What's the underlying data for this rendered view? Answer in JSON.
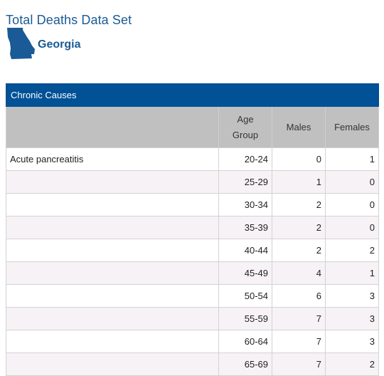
{
  "header": {
    "title": "Total Deaths Data Set"
  },
  "state": {
    "name": "Georgia",
    "icon": "georgia-state-icon",
    "color": "#1a5a96"
  },
  "table": {
    "caption": "Chronic Causes",
    "columns": {
      "cause": "",
      "age_group": "Age Group",
      "males": "Males",
      "females": "Females"
    },
    "rows": [
      {
        "cause": "Acute pancreatitis",
        "age_group": "20-24",
        "males": "0",
        "females": "1"
      },
      {
        "cause": "",
        "age_group": "25-29",
        "males": "1",
        "females": "0"
      },
      {
        "cause": "",
        "age_group": "30-34",
        "males": "2",
        "females": "0"
      },
      {
        "cause": "",
        "age_group": "35-39",
        "males": "2",
        "females": "0"
      },
      {
        "cause": "",
        "age_group": "40-44",
        "males": "2",
        "females": "2"
      },
      {
        "cause": "",
        "age_group": "45-49",
        "males": "4",
        "females": "1"
      },
      {
        "cause": "",
        "age_group": "50-54",
        "males": "6",
        "females": "3"
      },
      {
        "cause": "",
        "age_group": "55-59",
        "males": "7",
        "females": "3"
      },
      {
        "cause": "",
        "age_group": "60-64",
        "males": "7",
        "females": "3"
      },
      {
        "cause": "",
        "age_group": "65-69",
        "males": "7",
        "females": "2"
      }
    ]
  },
  "colors": {
    "caption_bg": "#005196",
    "header_bg": "#c0c0c0",
    "title": "#1a5a96",
    "row_alt": "#f6f2f5"
  }
}
